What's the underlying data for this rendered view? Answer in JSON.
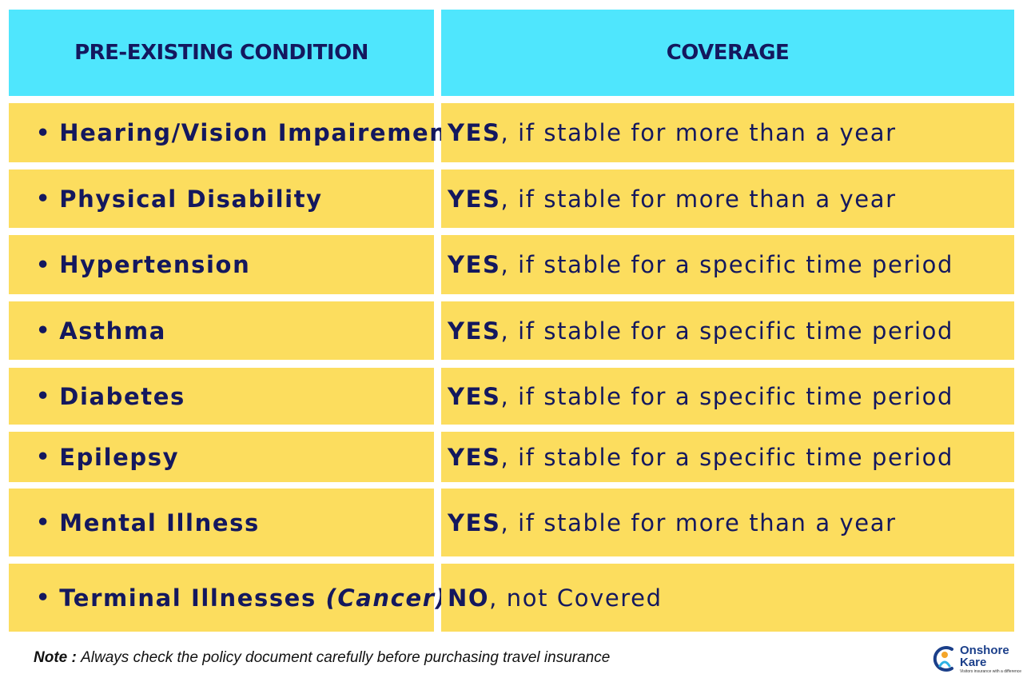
{
  "header": {
    "col1": "PRE-EXISTING CONDITION",
    "col2": "COVERAGE"
  },
  "rows": [
    {
      "condition": "Hearing/Vision Impairement",
      "condition_extra": "",
      "verdict": "YES",
      "detail": ", if stable for more than a year"
    },
    {
      "condition": "Physical Disability",
      "condition_extra": "",
      "verdict": "YES",
      "detail": ", if stable for more than a year"
    },
    {
      "condition": "Hypertension",
      "condition_extra": "",
      "verdict": "YES",
      "detail": ", if stable for a specific time period"
    },
    {
      "condition": "Asthma",
      "condition_extra": "",
      "verdict": "YES",
      "detail": ", if stable for a specific time period"
    },
    {
      "condition": "Diabetes",
      "condition_extra": "",
      "verdict": "YES",
      "detail": ", if stable for a specific time period"
    },
    {
      "condition": "Epilepsy",
      "condition_extra": "",
      "verdict": "YES",
      "detail": ", if stable for a specific time period"
    },
    {
      "condition": "Mental Illness",
      "condition_extra": "",
      "verdict": "YES",
      "detail": ", if stable for more than a year"
    },
    {
      "condition": "Terminal Illnesses ",
      "condition_extra": "(Cancer)",
      "verdict": "NO",
      "detail": ", not Covered"
    }
  ],
  "bullet": "•",
  "note": {
    "label": "Note",
    "separator": " : ",
    "text": "Always check the policy document carefully before  purchasing travel insurance"
  },
  "logo": {
    "line1": "Onshore",
    "line2": "Kare",
    "tagline": "Visitors insurance with a difference"
  },
  "colors": {
    "header_bg": "#4fe6fd",
    "row_bg": "#fcdd5e",
    "text": "#14185e"
  }
}
